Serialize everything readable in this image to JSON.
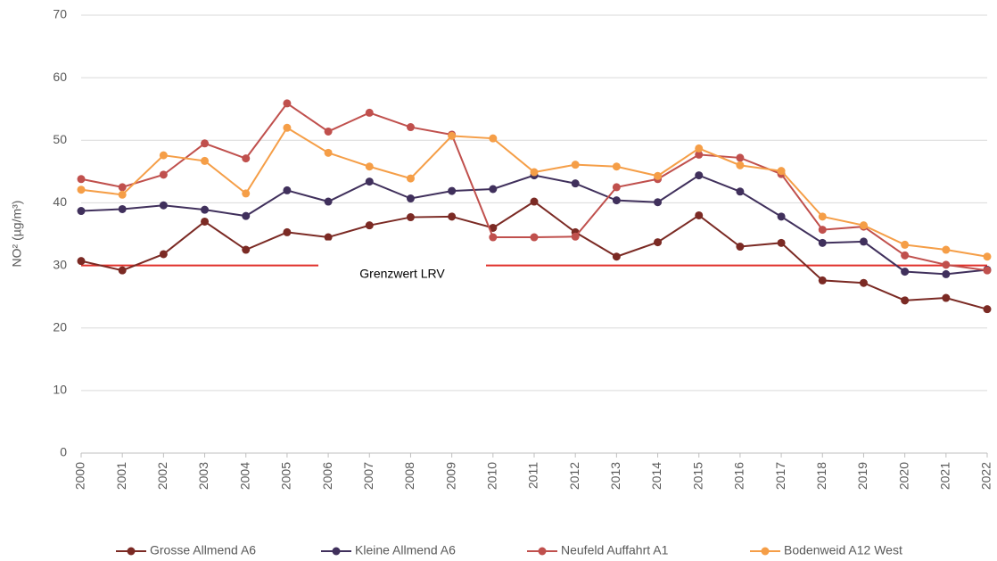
{
  "chart_data": {
    "type": "line",
    "y_label": "NO² (µg/m³)",
    "categories": [
      "2000",
      "2001",
      "2002",
      "2003",
      "2004",
      "2005",
      "2006",
      "2007",
      "2008",
      "2009",
      "2010",
      "2011",
      "2012",
      "2013",
      "2014",
      "2015",
      "2016",
      "2017",
      "2018",
      "2019",
      "2020",
      "2021",
      "2022"
    ],
    "series": [
      {
        "name": "Grosse Allmend A6",
        "color": "#7b2a24",
        "values": [
          30.7,
          29.2,
          31.8,
          37,
          32.5,
          35.3,
          34.5,
          36.4,
          37.7,
          37.8,
          36,
          40.2,
          35.3,
          31.4,
          33.7,
          38,
          33,
          33.6,
          27.6,
          27.2,
          24.4,
          24.8,
          23
        ]
      },
      {
        "name": "Kleine Allmend A6",
        "color": "#40305c",
        "values": [
          38.7,
          39,
          39.6,
          38.9,
          37.9,
          42,
          40.2,
          43.4,
          40.7,
          41.9,
          42.2,
          44.4,
          43.1,
          40.4,
          40.1,
          44.4,
          41.8,
          37.8,
          33.6,
          33.8,
          29,
          28.6,
          29.3
        ]
      },
      {
        "name": "Neufeld Auffahrt A1",
        "color": "#c0504d",
        "values": [
          43.8,
          42.5,
          44.5,
          49.5,
          47.1,
          55.9,
          51.4,
          54.4,
          52.1,
          50.9,
          34.5,
          34.5,
          34.6,
          42.5,
          43.8,
          47.7,
          47.2,
          44.6,
          35.7,
          36.2,
          31.6,
          30.1,
          29.2
        ]
      },
      {
        "name": "Bodenweid A12 West",
        "color": "#f59e47",
        "values": [
          42.1,
          41.3,
          47.6,
          46.7,
          41.5,
          52,
          48,
          45.8,
          43.9,
          50.7,
          50.3,
          44.9,
          46.1,
          45.8,
          44.3,
          48.7,
          46,
          45.1,
          37.8,
          36.4,
          33.3,
          32.5,
          31.4
        ]
      }
    ],
    "limit": {
      "value": 30,
      "label": "Grenzwert LRV",
      "color": "#e0302a"
    },
    "ylim": [
      0,
      70
    ],
    "yticks": [
      0,
      10,
      20,
      30,
      40,
      50,
      60,
      70
    ],
    "grid": true,
    "legend": "bottom"
  }
}
